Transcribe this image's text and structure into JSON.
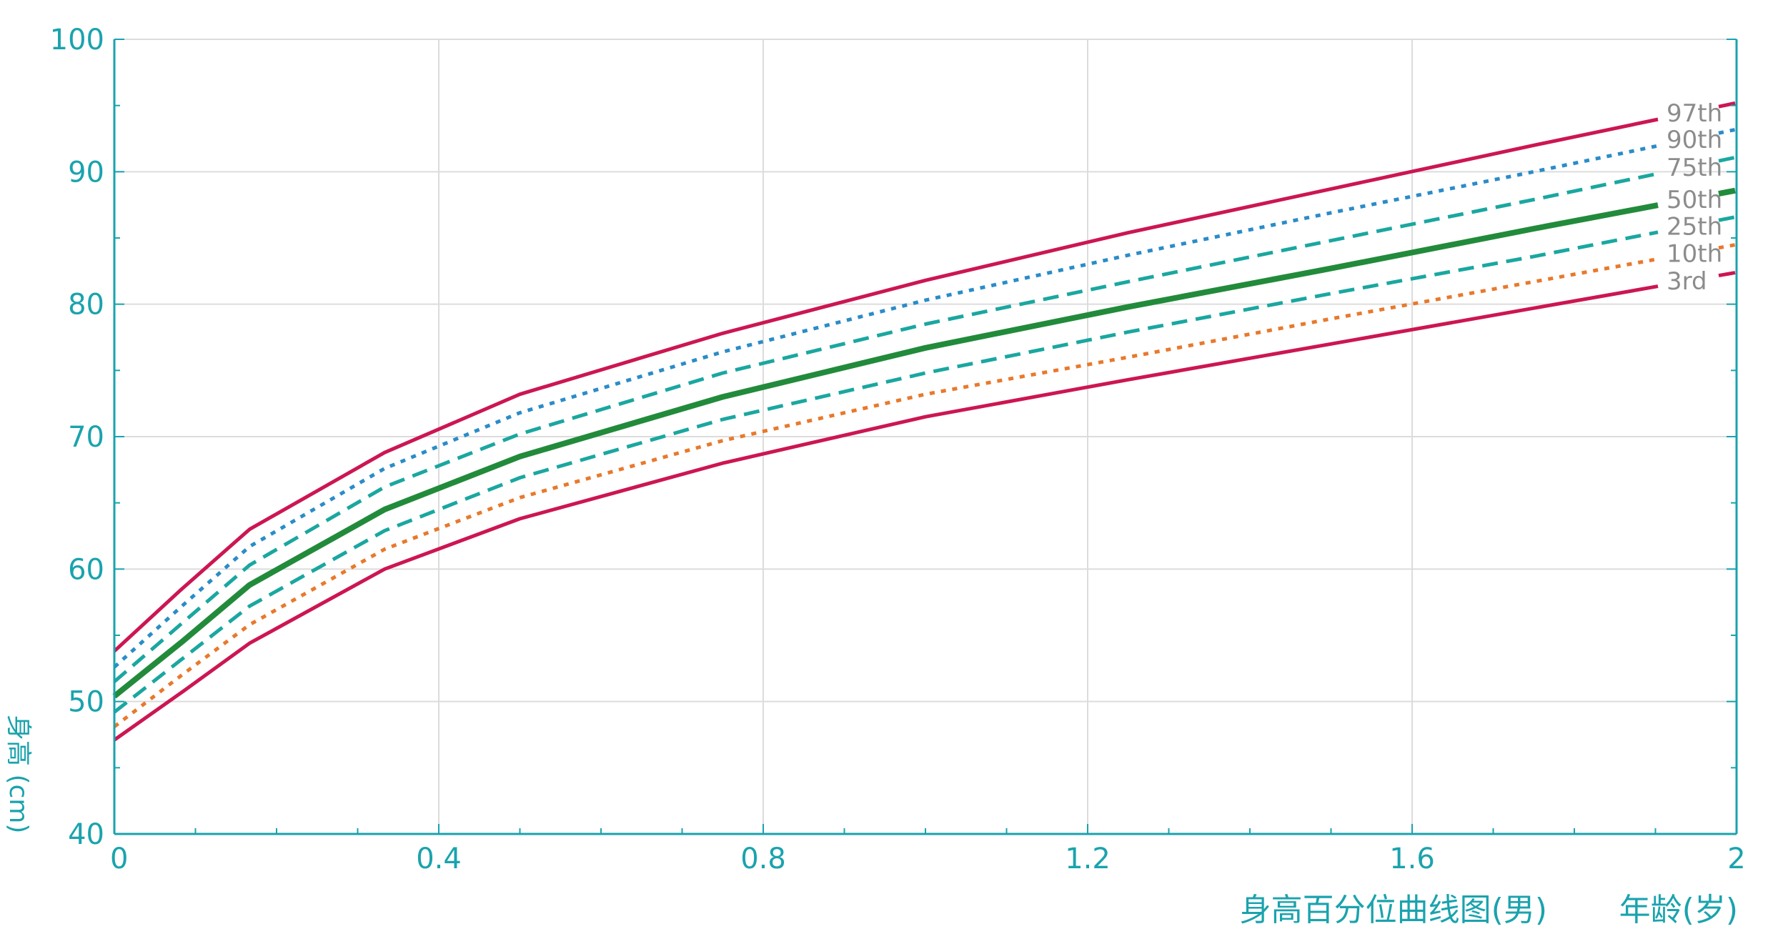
{
  "chart_data": {
    "type": "line",
    "title": "",
    "caption": "身高百分位曲线图(男)",
    "xlabel": "年龄(岁)",
    "ylabel": "身高 (cm)",
    "xlim": [
      0,
      2
    ],
    "ylim": [
      40,
      100
    ],
    "x_ticks": [
      "0",
      "0.4",
      "0.8",
      "1.2",
      "1.6",
      "2"
    ],
    "y_ticks": [
      "100",
      "90",
      "80",
      "70",
      "60",
      "50",
      "40"
    ],
    "grid": true,
    "x": [
      0,
      0.0833,
      0.1667,
      0.3333,
      0.5,
      0.75,
      1.0,
      1.25,
      1.5,
      1.75,
      2.0
    ],
    "series": [
      {
        "name": "97th",
        "color": "#cc1652",
        "style": "solid",
        "values": [
          53.8,
          58.5,
          63.0,
          68.8,
          73.2,
          77.8,
          81.8,
          85.4,
          88.7,
          92.0,
          95.2
        ]
      },
      {
        "name": "90th",
        "color": "#2a8cc8",
        "style": "dotted",
        "values": [
          52.6,
          57.2,
          61.7,
          67.6,
          71.8,
          76.4,
          80.3,
          83.7,
          86.9,
          90.0,
          93.2
        ]
      },
      {
        "name": "75th",
        "color": "#1aa7a0",
        "style": "dashed",
        "values": [
          51.5,
          55.9,
          60.3,
          66.2,
          70.2,
          74.8,
          78.5,
          81.7,
          84.8,
          87.9,
          91.1
        ]
      },
      {
        "name": "50th",
        "color": "#228b3b",
        "style": "solid-thick",
        "values": [
          50.4,
          54.5,
          58.8,
          64.5,
          68.5,
          73.0,
          76.7,
          79.8,
          82.7,
          85.7,
          88.6
        ]
      },
      {
        "name": "25th",
        "color": "#1aa7a0",
        "style": "dashed",
        "values": [
          49.2,
          53.2,
          57.2,
          62.9,
          66.9,
          71.3,
          74.8,
          77.9,
          80.8,
          83.6,
          86.6
        ]
      },
      {
        "name": "10th",
        "color": "#e8792c",
        "style": "dotted",
        "values": [
          48.1,
          52.0,
          55.8,
          61.5,
          65.4,
          69.7,
          73.2,
          76.0,
          78.9,
          81.7,
          84.5
        ]
      },
      {
        "name": "3rd",
        "color": "#cc1652",
        "style": "solid",
        "values": [
          47.1,
          50.7,
          54.4,
          60.0,
          63.8,
          68.0,
          71.5,
          74.3,
          77.0,
          79.7,
          82.4
        ]
      }
    ],
    "label_colors": {
      "axis": "#1aa3ad",
      "grid": "#dcdcdc",
      "series_label": "#8c8c8c"
    }
  }
}
